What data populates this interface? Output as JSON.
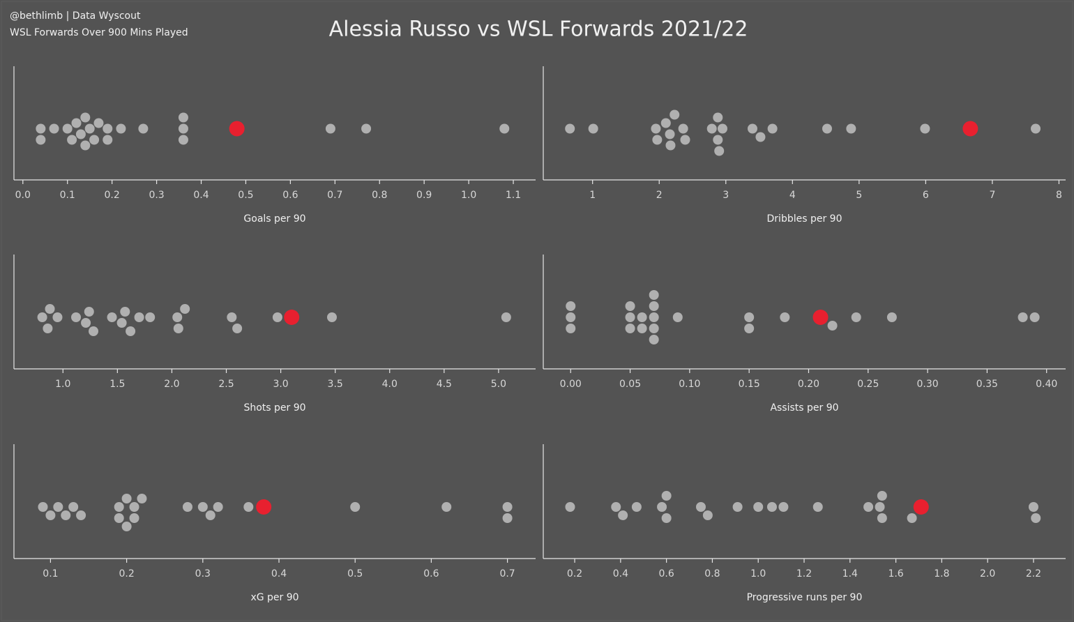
{
  "header": {
    "credit": "@bethlimb | Data Wyscout",
    "subtitle": "WSL Forwards Over 900 Mins Played",
    "title": "Alessia Russo vs WSL Forwards 2021/22"
  },
  "chart_data": [
    {
      "type": "strip",
      "x_label": "Goals per 90",
      "xlim": [
        -0.02,
        1.15
      ],
      "xticks": [
        {
          "value": 0,
          "label": "0.0"
        },
        0.1,
        0.2,
        0.3,
        0.4,
        0.5,
        0.6,
        0.7,
        0.8,
        0.9,
        {
          "value": 1,
          "label": "1.0"
        },
        1.1
      ],
      "series": [
        {
          "color": "#b0b0b0",
          "values": [
            0.04,
            0.04,
            0.07,
            0.1,
            0.11,
            0.12,
            0.13,
            0.14,
            0.14,
            0.15,
            0.16,
            0.17,
            0.19,
            0.19,
            0.22,
            0.27,
            0.36,
            0.36,
            0.36,
            0.69,
            0.77,
            1.08
          ]
        },
        {
          "color": "#e8202f",
          "values": [
            0.48
          ]
        }
      ]
    },
    {
      "type": "strip",
      "x_label": "Dribbles per 90",
      "xlim": [
        0.26,
        8.1
      ],
      "xticks": [
        1,
        2,
        3,
        4,
        5,
        6,
        7,
        8
      ],
      "series": [
        {
          "color": "#b0b0b0",
          "values": [
            0.66,
            1.01,
            1.95,
            1.97,
            2.1,
            2.16,
            2.17,
            2.23,
            2.36,
            2.39,
            2.79,
            2.88,
            2.88,
            2.9,
            2.95,
            3.4,
            3.52,
            3.7,
            4.52,
            4.88,
            5.99,
            7.65
          ]
        },
        {
          "color": "#e8202f",
          "values": [
            6.67
          ]
        }
      ]
    },
    {
      "type": "strip",
      "x_label": "Shots per 90",
      "xlim": [
        0.55,
        5.34
      ],
      "xticks": [
        {
          "value": 1,
          "label": "1.0"
        },
        1.5,
        {
          "value": 2,
          "label": "2.0"
        },
        2.5,
        {
          "value": 3,
          "label": "3.0"
        },
        3.5,
        {
          "value": 4,
          "label": "4.0"
        },
        4.5,
        {
          "value": 5,
          "label": "5.0"
        }
      ],
      "series": [
        {
          "color": "#b0b0b0",
          "values": [
            0.81,
            0.86,
            0.88,
            0.95,
            1.12,
            1.21,
            1.24,
            1.28,
            1.45,
            1.54,
            1.57,
            1.62,
            1.7,
            1.8,
            2.05,
            2.06,
            2.12,
            2.55,
            2.6,
            2.97,
            3.47,
            5.07
          ]
        },
        {
          "color": "#e8202f",
          "values": [
            3.1
          ]
        }
      ]
    },
    {
      "type": "strip",
      "x_label": "Assists per 90",
      "xlim": [
        -0.023,
        0.416
      ],
      "xticks": [
        {
          "value": 0,
          "label": "0.00"
        },
        0.05,
        {
          "value": 0.1,
          "label": "0.10"
        },
        0.15,
        {
          "value": 0.2,
          "label": "0.20"
        },
        0.25,
        {
          "value": 0.3,
          "label": "0.30"
        },
        0.35,
        {
          "value": 0.4,
          "label": "0.40"
        }
      ],
      "series": [
        {
          "color": "#b0b0b0",
          "values": [
            0,
            0,
            0,
            0.05,
            0.05,
            0.05,
            0.06,
            0.06,
            0.07,
            0.07,
            0.07,
            0.07,
            0.07,
            0.09,
            0.15,
            0.15,
            0.18,
            0.22,
            0.24,
            0.27,
            0.38,
            0.39
          ]
        },
        {
          "color": "#e8202f",
          "values": [
            0.21
          ]
        }
      ]
    },
    {
      "type": "strip",
      "x_label": "xG per 90",
      "xlim": [
        0.052,
        0.737
      ],
      "xticks": [
        0.1,
        0.2,
        0.3,
        0.4,
        0.5,
        0.6,
        0.7
      ],
      "series": [
        {
          "color": "#b0b0b0",
          "values": [
            0.09,
            0.1,
            0.11,
            0.12,
            0.13,
            0.14,
            0.19,
            0.19,
            0.2,
            0.2,
            0.21,
            0.21,
            0.22,
            0.28,
            0.3,
            0.31,
            0.32,
            0.36,
            0.5,
            0.62,
            0.7,
            0.7
          ]
        },
        {
          "color": "#e8202f",
          "values": [
            0.38
          ]
        }
      ]
    },
    {
      "type": "strip",
      "x_label": "Progressive runs per 90",
      "xlim": [
        0.063,
        2.34
      ],
      "xticks": [
        0.2,
        0.4,
        0.6,
        0.8,
        {
          "value": 1,
          "label": "1.0"
        },
        1.2,
        1.4,
        1.6,
        1.8,
        {
          "value": 2,
          "label": "2.0"
        },
        2.2
      ],
      "series": [
        {
          "color": "#b0b0b0",
          "values": [
            0.18,
            0.38,
            0.41,
            0.47,
            0.58,
            0.6,
            0.6,
            0.75,
            0.78,
            0.91,
            1,
            1.06,
            1.11,
            1.26,
            1.48,
            1.53,
            1.54,
            1.54,
            1.67,
            2.2,
            2.21
          ]
        },
        {
          "color": "#e8202f",
          "values": [
            1.71
          ]
        }
      ]
    }
  ]
}
